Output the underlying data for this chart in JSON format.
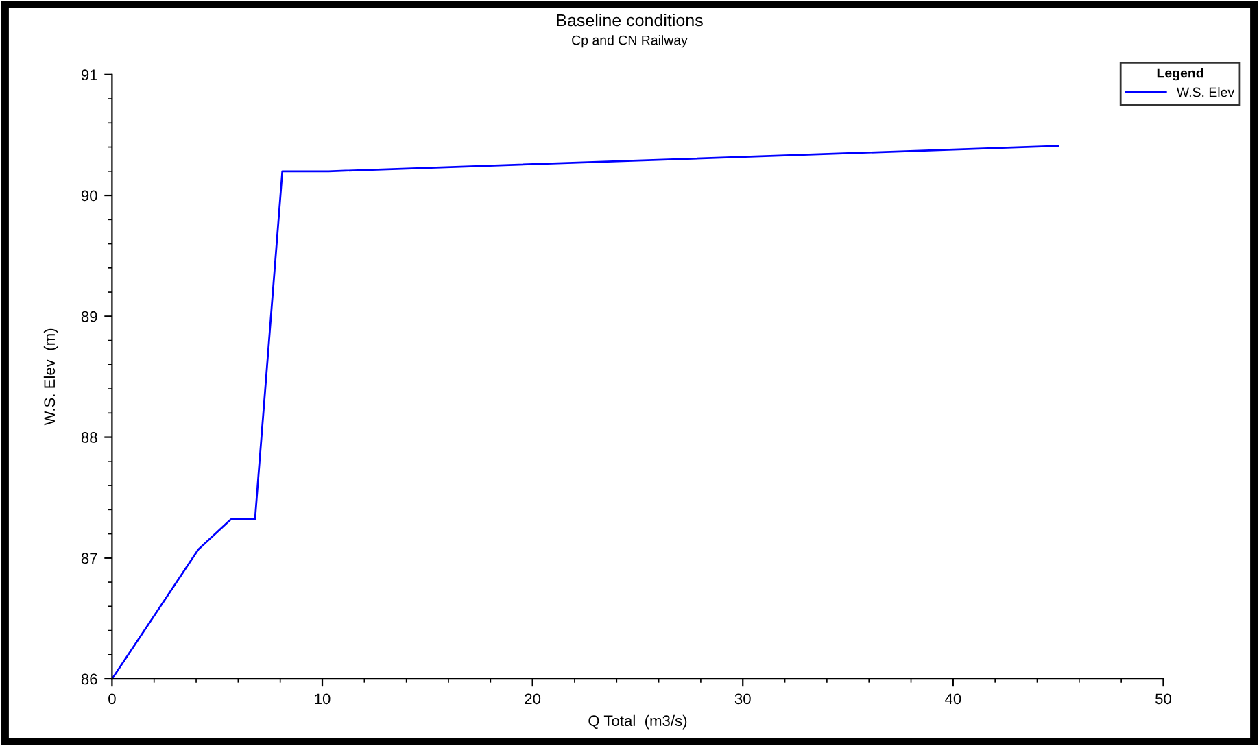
{
  "chart_data": {
    "type": "line",
    "title": "Baseline conditions",
    "subtitle": "Cp and CN Railway",
    "xlabel": "Q Total  (m3/s)",
    "ylabel": "W.S. Elev  (m)",
    "legend_title": "Legend",
    "legend": "top right",
    "series": [
      {
        "name": "W.S. Elev",
        "color": "#0000ff",
        "x": [
          0,
          4.1,
          5.65,
          6.8,
          8.1,
          10.3,
          45.0
        ],
        "values": [
          86.0,
          87.07,
          87.32,
          87.32,
          90.2,
          90.2,
          90.41
        ]
      }
    ],
    "xlim": [
      0,
      50
    ],
    "xticks": [
      0,
      10,
      20,
      30,
      40,
      50
    ],
    "ylim": [
      86,
      91
    ],
    "yticks": [
      86,
      87,
      88,
      89,
      90,
      91
    ],
    "grid": false,
    "marker": "none",
    "line_style": "solid"
  }
}
